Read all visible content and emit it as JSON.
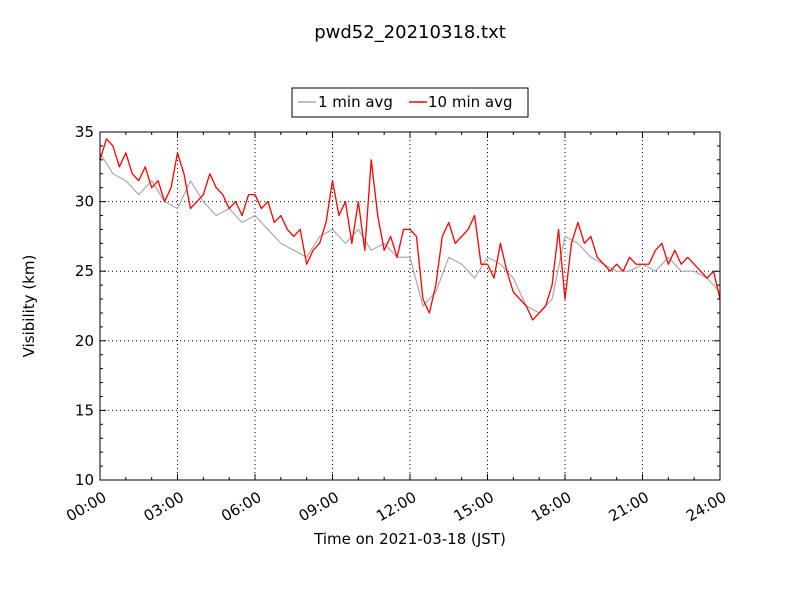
{
  "chart_data": {
    "type": "line",
    "title": "pwd52_20210318.txt",
    "xlabel": "Time on 2021-03-18 (JST)",
    "ylabel": "Visibility (km)",
    "xlim": [
      "00:00",
      "24:00"
    ],
    "ylim": [
      10,
      35
    ],
    "x_ticks": [
      "00:00",
      "03:00",
      "06:00",
      "09:00",
      "12:00",
      "15:00",
      "18:00",
      "21:00",
      "24:00"
    ],
    "y_ticks": [
      "10",
      "15",
      "20",
      "25",
      "30",
      "35"
    ],
    "grid": true,
    "legend_position": "top-center",
    "series": [
      {
        "name": "1 min avg",
        "color": "#aaaaaa",
        "x": [
          "00:00",
          "00:30",
          "01:00",
          "01:30",
          "02:00",
          "02:30",
          "03:00",
          "03:30",
          "04:00",
          "04:30",
          "05:00",
          "05:30",
          "06:00",
          "06:30",
          "07:00",
          "07:30",
          "08:00",
          "08:30",
          "09:00",
          "09:30",
          "10:00",
          "10:30",
          "11:00",
          "11:30",
          "12:00",
          "12:30",
          "13:00",
          "13:30",
          "14:00",
          "14:30",
          "15:00",
          "15:30",
          "16:00",
          "16:30",
          "17:00",
          "17:30",
          "18:00",
          "18:30",
          "19:00",
          "19:30",
          "20:00",
          "20:30",
          "21:00",
          "21:30",
          "22:00",
          "22:30",
          "23:00",
          "23:30",
          "24:00"
        ],
        "values": [
          33.5,
          32.0,
          31.5,
          30.5,
          31.5,
          30.0,
          29.5,
          31.5,
          30.0,
          29.0,
          29.5,
          28.5,
          29.0,
          28.0,
          27.0,
          26.5,
          26.0,
          27.5,
          28.0,
          27.0,
          28.0,
          26.5,
          27.0,
          26.0,
          26.0,
          22.5,
          23.5,
          26.0,
          25.5,
          24.5,
          26.0,
          25.5,
          24.5,
          22.5,
          22.0,
          23.0,
          27.5,
          27.0,
          26.0,
          25.5,
          25.0,
          25.0,
          25.5,
          25.0,
          26.0,
          25.0,
          25.0,
          24.5,
          23.5
        ]
      },
      {
        "name": "10 min avg",
        "color": "#ff0000",
        "x": [
          "00:00",
          "00:15",
          "00:30",
          "00:45",
          "01:00",
          "01:15",
          "01:30",
          "01:45",
          "02:00",
          "02:15",
          "02:30",
          "02:45",
          "03:00",
          "03:15",
          "03:30",
          "03:45",
          "04:00",
          "04:15",
          "04:30",
          "04:45",
          "05:00",
          "05:15",
          "05:30",
          "05:45",
          "06:00",
          "06:15",
          "06:30",
          "06:45",
          "07:00",
          "07:15",
          "07:30",
          "07:45",
          "08:00",
          "08:15",
          "08:30",
          "08:45",
          "09:00",
          "09:15",
          "09:30",
          "09:45",
          "10:00",
          "10:15",
          "10:30",
          "10:45",
          "11:00",
          "11:15",
          "11:30",
          "11:45",
          "12:00",
          "12:15",
          "12:30",
          "12:45",
          "13:00",
          "13:15",
          "13:30",
          "13:45",
          "14:00",
          "14:15",
          "14:30",
          "14:45",
          "15:00",
          "15:15",
          "15:30",
          "15:45",
          "16:00",
          "16:15",
          "16:30",
          "16:45",
          "17:00",
          "17:15",
          "17:30",
          "17:45",
          "18:00",
          "18:15",
          "18:30",
          "18:45",
          "19:00",
          "19:15",
          "19:30",
          "19:45",
          "20:00",
          "20:15",
          "20:30",
          "20:45",
          "21:00",
          "21:15",
          "21:30",
          "21:45",
          "22:00",
          "22:15",
          "22:30",
          "22:45",
          "23:00",
          "23:15",
          "23:30",
          "23:45",
          "24:00"
        ],
        "values": [
          33.0,
          34.5,
          34.0,
          32.5,
          33.5,
          32.0,
          31.5,
          32.5,
          31.0,
          31.5,
          30.0,
          31.0,
          33.5,
          32.0,
          29.5,
          30.0,
          30.5,
          32.0,
          31.0,
          30.5,
          29.5,
          30.0,
          29.0,
          30.5,
          30.5,
          29.5,
          30.0,
          28.5,
          29.0,
          28.0,
          27.5,
          28.0,
          25.5,
          26.5,
          27.0,
          28.5,
          31.5,
          29.0,
          30.0,
          27.0,
          30.0,
          26.5,
          33.0,
          29.0,
          26.5,
          27.5,
          26.0,
          28.0,
          28.0,
          27.5,
          23.0,
          22.0,
          24.0,
          27.5,
          28.5,
          27.0,
          27.5,
          28.0,
          29.0,
          25.5,
          25.5,
          24.5,
          27.0,
          25.0,
          23.5,
          23.0,
          22.5,
          21.5,
          22.0,
          22.5,
          24.0,
          28.0,
          23.0,
          27.0,
          28.5,
          27.0,
          27.5,
          26.0,
          25.5,
          25.0,
          25.5,
          25.0,
          26.0,
          25.5,
          25.5,
          25.5,
          26.5,
          27.0,
          25.5,
          26.5,
          25.5,
          26.0,
          25.5,
          25.0,
          24.5,
          25.0,
          23.0
        ]
      }
    ]
  }
}
